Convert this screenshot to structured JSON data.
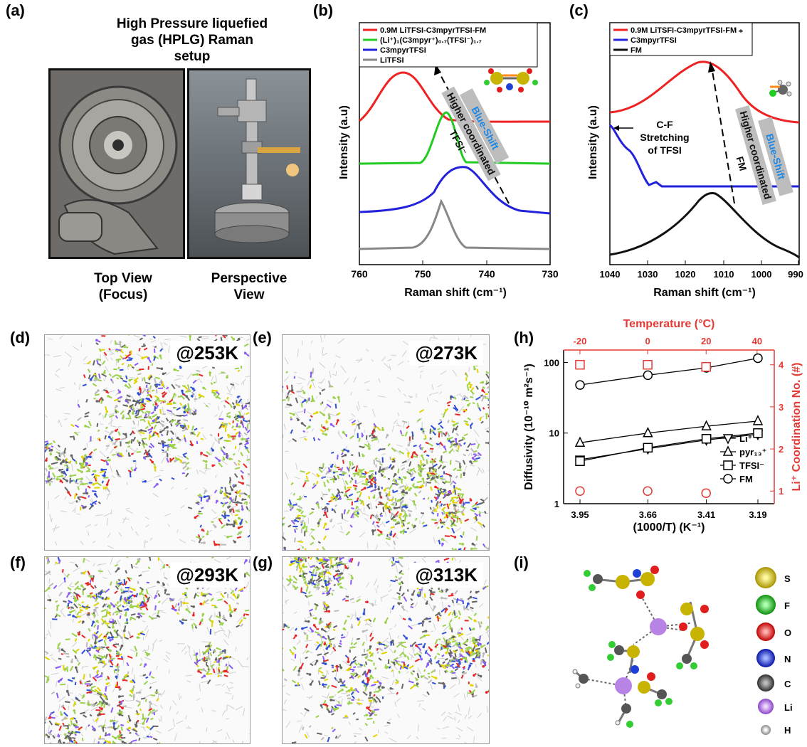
{
  "panel_labels": {
    "a": "(a)",
    "b": "(b)",
    "c": "(c)",
    "d": "(d)",
    "e": "(e)",
    "f": "(f)",
    "g": "(g)",
    "h": "(h)",
    "i": "(i)"
  },
  "panel_a": {
    "title_lines": [
      "High Pressure liquefied",
      "gas (HPLG) Raman",
      "setup"
    ],
    "caption_left": [
      "Top View",
      "(Focus)"
    ],
    "caption_right": [
      "Perspective",
      "View"
    ]
  },
  "panel_b": {
    "legend": [
      "0.9M LiTFSI-C3mpyrTFSI-FM",
      "(Li⁺)₁(C3mpyr⁺)₀.₇(TFSI⁻)₁.₇",
      "C3mpyrTFSI",
      "LiTFSI"
    ],
    "ylabel": "Intensity (a.u)",
    "xlabel": "Raman shift (cm⁻¹)",
    "xticks": [
      "760",
      "750",
      "740",
      "730"
    ],
    "annot_blue": "Blue-Shift",
    "annot_gray": [
      "Higher coordinated",
      "TFSI⁻"
    ]
  },
  "panel_c": {
    "legend": [
      "0.9M LiTSFI-C3mpyrTFSI-FM ⁎",
      "C3mpyrTFSI",
      "FM"
    ],
    "ylabel": "Intensity (a.u)",
    "xlabel": "Raman shift (cm⁻¹)",
    "xticks": [
      "1040",
      "1030",
      "1020",
      "1010",
      "1000",
      "990"
    ],
    "annot_cf": [
      "C-F",
      "Stretching",
      "of TFSI"
    ],
    "annot_blue": "Blue-Shift",
    "annot_gray": [
      "Higher coordinated",
      "FM"
    ]
  },
  "md_labels": {
    "d": "@253K",
    "e": "@273K",
    "f": "@293K",
    "g": "@313K"
  },
  "chart_data": {
    "type": "scatter",
    "top_xlabel": "Temperature (°C)",
    "top_xticks": [
      "-20",
      "0",
      "20",
      "40"
    ],
    "xlabel": "(1000/T) (K⁻¹)",
    "xticks": [
      "3.95",
      "3.66",
      "3.41",
      "3.19"
    ],
    "ylabel": "Diffusivity (10⁻¹⁰ m²s⁻¹)",
    "y2label": "Li⁺ Coordination No. (#)",
    "yticks": [
      "1",
      "10",
      "100"
    ],
    "y2ticks": [
      "1",
      "2",
      "3",
      "4"
    ],
    "x": [
      3.95,
      3.66,
      3.41,
      3.19
    ],
    "series": [
      {
        "name": "Li⁺",
        "marker": "triangle-down",
        "values": [
          4.2,
          6.0,
          8.0,
          9.6
        ]
      },
      {
        "name": "pyr₁₃⁺",
        "marker": "triangle-up",
        "values": [
          7.3,
          10.0,
          12.5,
          14.8
        ]
      },
      {
        "name": "TFSI⁻",
        "marker": "square",
        "values": [
          4.0,
          6.2,
          8.3,
          10.0
        ]
      },
      {
        "name": "FM",
        "marker": "circle",
        "values": [
          48,
          66,
          84,
          115
        ]
      }
    ],
    "coordination": {
      "temperature_c": [
        -20,
        0,
        20
      ],
      "square": [
        4.0,
        4.0,
        3.95
      ],
      "circle": [
        1.0,
        1.0,
        0.95
      ]
    }
  },
  "panel_i_legend": [
    "S",
    "F",
    "O",
    "N",
    "C",
    "Li",
    "H"
  ],
  "colors": {
    "red": "#ee2222",
    "green": "#22cc22",
    "blue": "#2222dd",
    "gray": "#888888",
    "accent_red": "#e53935"
  }
}
